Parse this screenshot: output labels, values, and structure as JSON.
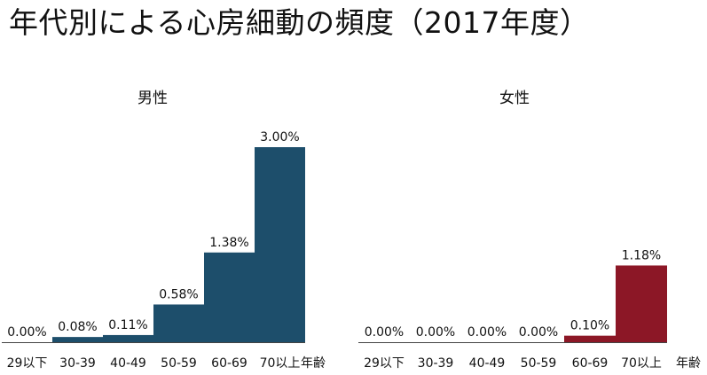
{
  "title": "年代別による心房細動の頻度（2017年度）",
  "chart_data": [
    {
      "type": "bar",
      "title": "男性",
      "xlabel": "年齢",
      "ylabel": "",
      "unit": "%",
      "ylim": [
        0,
        3.0
      ],
      "color": "#1d4e6b",
      "categories": [
        "29以下",
        "30-39",
        "40-49",
        "50-59",
        "60-69",
        "70以上"
      ],
      "values": [
        0.0,
        0.08,
        0.11,
        0.58,
        1.38,
        3.0
      ],
      "data_labels": [
        "0.00%",
        "0.08%",
        "0.11%",
        "0.58%",
        "1.38%",
        "3.00%"
      ],
      "grid": false,
      "legend": "none"
    },
    {
      "type": "bar",
      "title": "女性",
      "xlabel": "年齢",
      "ylabel": "",
      "unit": "%",
      "ylim": [
        0,
        3.0
      ],
      "color": "#8c1726",
      "categories": [
        "29以下",
        "30-39",
        "40-49",
        "50-59",
        "60-69",
        "70以上"
      ],
      "values": [
        0.0,
        0.0,
        0.0,
        0.0,
        0.1,
        1.18
      ],
      "data_labels": [
        "0.00%",
        "0.00%",
        "0.00%",
        "0.00%",
        "0.10%",
        "1.18%"
      ],
      "grid": false,
      "legend": "none"
    }
  ]
}
